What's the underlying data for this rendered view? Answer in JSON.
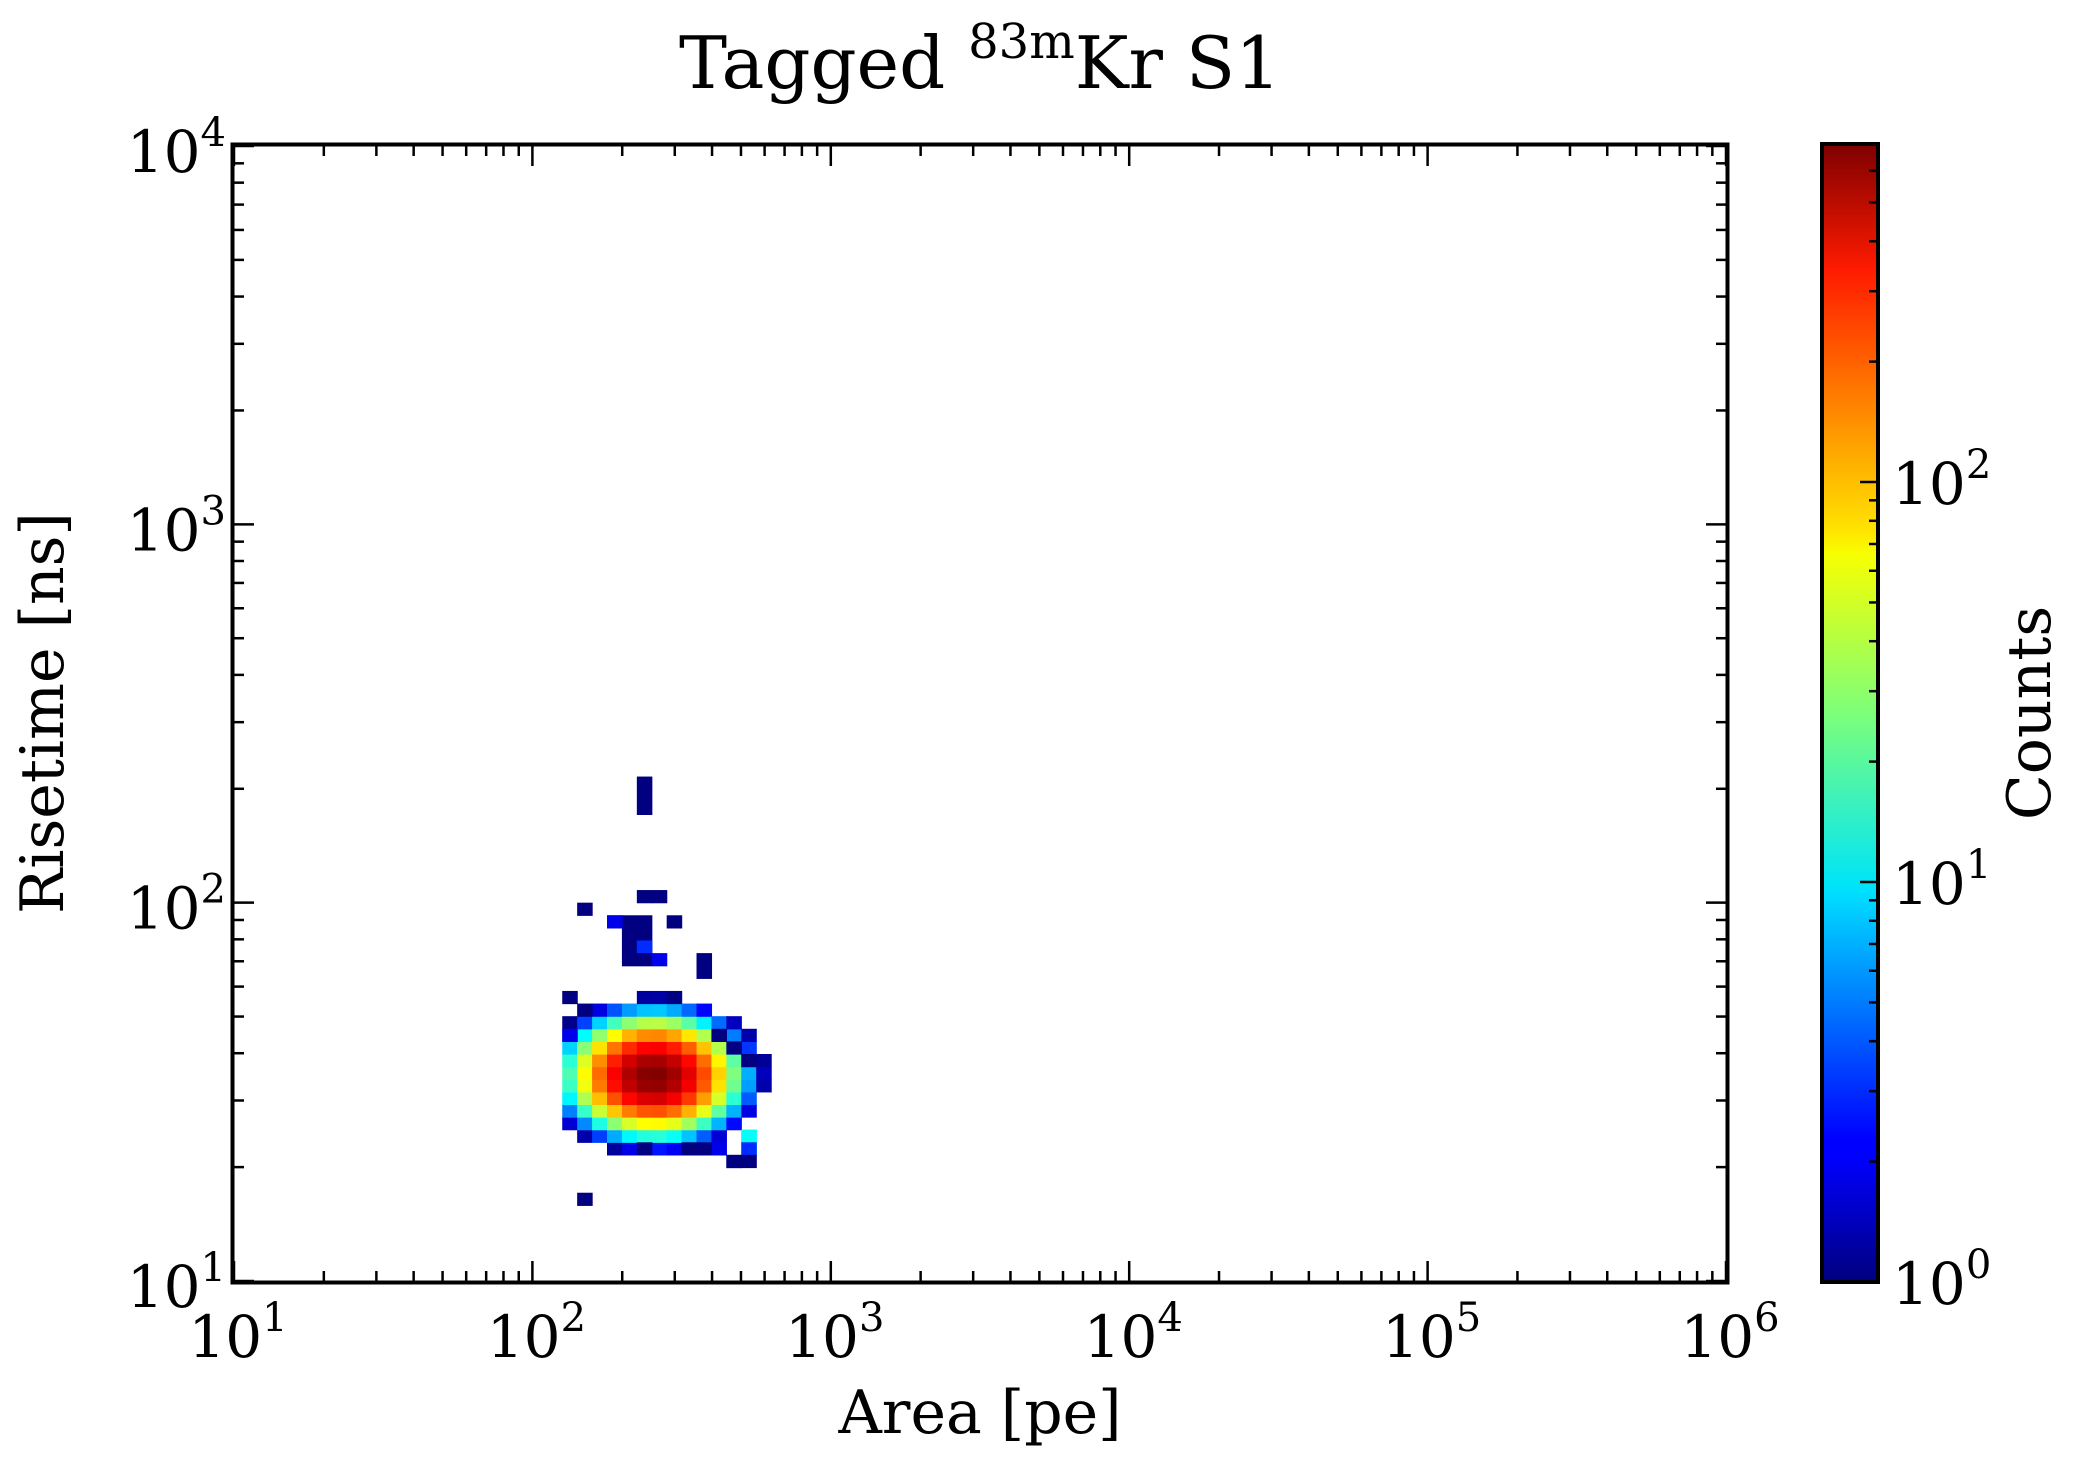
{
  "chart_data": {
    "type": "heatmap",
    "title": {
      "prefix": "Tagged ",
      "superscript": "83m",
      "suffix": "Kr S1"
    },
    "xlabel": "Area [pe]",
    "ylabel": "Risetime [ns]",
    "colorbar_label": "Counts",
    "x_scale": "log",
    "y_scale": "log",
    "color_scale": "log",
    "colormap": "jet",
    "xlim": [
      10,
      1000000
    ],
    "ylim": [
      10,
      10000
    ],
    "clim": [
      1,
      700
    ],
    "grid": false,
    "x_ticks": [
      {
        "value": 10,
        "base": "10",
        "exp": "1"
      },
      {
        "value": 100,
        "base": "10",
        "exp": "2"
      },
      {
        "value": 1000,
        "base": "10",
        "exp": "3"
      },
      {
        "value": 10000,
        "base": "10",
        "exp": "4"
      },
      {
        "value": 100000,
        "base": "10",
        "exp": "5"
      },
      {
        "value": 1000000,
        "base": "10",
        "exp": "6"
      }
    ],
    "y_ticks": [
      {
        "value": 10,
        "base": "10",
        "exp": "1"
      },
      {
        "value": 100,
        "base": "10",
        "exp": "2"
      },
      {
        "value": 1000,
        "base": "10",
        "exp": "3"
      },
      {
        "value": 10000,
        "base": "10",
        "exp": "4"
      }
    ],
    "colorbar_ticks": [
      {
        "value": 1,
        "base": "10",
        "exp": "0"
      },
      {
        "value": 10,
        "base": "10",
        "exp": "1"
      },
      {
        "value": 100,
        "base": "10",
        "exp": "2"
      }
    ],
    "bins": {
      "x_per_decade": 20,
      "y_per_decade": 30,
      "peak": {
        "area": 255,
        "risetime": 35,
        "counts": 700
      },
      "spread_log_area": 0.105,
      "spread_log_risetime": 0.058,
      "min_count": 1,
      "area_range": [
        140,
        600
      ],
      "risetime_range": [
        21,
        66
      ]
    },
    "sparse_bins": [
      {
        "area": 250,
        "risetime": 208,
        "counts": 1
      },
      {
        "area": 250,
        "risetime": 196,
        "counts": 1
      },
      {
        "area": 250,
        "risetime": 173,
        "counts": 1
      },
      {
        "area": 250,
        "risetime": 104,
        "counts": 1
      },
      {
        "area": 280,
        "risetime": 104,
        "counts": 1
      },
      {
        "area": 155,
        "risetime": 98,
        "counts": 1
      },
      {
        "area": 178,
        "risetime": 92,
        "counts": 1
      },
      {
        "area": 205,
        "risetime": 92,
        "counts": 1
      },
      {
        "area": 224,
        "risetime": 92,
        "counts": 1
      },
      {
        "area": 306,
        "risetime": 86,
        "counts": 1
      },
      {
        "area": 178,
        "risetime": 86,
        "counts": 2
      },
      {
        "area": 205,
        "risetime": 81,
        "counts": 1
      },
      {
        "area": 224,
        "risetime": 81,
        "counts": 1
      },
      {
        "area": 205,
        "risetime": 76,
        "counts": 1
      },
      {
        "area": 224,
        "risetime": 76,
        "counts": 1
      },
      {
        "area": 250,
        "risetime": 76,
        "counts": 3
      },
      {
        "area": 395,
        "risetime": 73,
        "counts": 1
      },
      {
        "area": 205,
        "risetime": 71,
        "counts": 1
      },
      {
        "area": 224,
        "risetime": 71,
        "counts": 1
      },
      {
        "area": 280,
        "risetime": 71,
        "counts": 2
      },
      {
        "area": 355,
        "risetime": 67,
        "counts": 1
      },
      {
        "area": 140,
        "risetime": 58,
        "counts": 1
      },
      {
        "area": 155,
        "risetime": 54,
        "counts": 1
      },
      {
        "area": 140,
        "risetime": 45,
        "counts": 2
      },
      {
        "area": 440,
        "risetime": 45,
        "counts": 1
      },
      {
        "area": 480,
        "risetime": 41,
        "counts": 1
      },
      {
        "area": 525,
        "risetime": 39,
        "counts": 1
      },
      {
        "area": 525,
        "risetime": 25,
        "counts": 12
      },
      {
        "area": 560,
        "risetime": 25,
        "counts": 12
      },
      {
        "area": 560,
        "risetime": 23,
        "counts": 10
      },
      {
        "area": 525,
        "risetime": 22,
        "counts": 3
      },
      {
        "area": 480,
        "risetime": 21,
        "counts": 1
      },
      {
        "area": 560,
        "risetime": 21,
        "counts": 1
      },
      {
        "area": 490,
        "risetime": 20,
        "counts": 1
      },
      {
        "area": 420,
        "risetime": 23,
        "counts": 2
      },
      {
        "area": 395,
        "risetime": 23,
        "counts": 1
      },
      {
        "area": 345,
        "risetime": 23,
        "counts": 1
      },
      {
        "area": 250,
        "risetime": 23,
        "counts": 1
      },
      {
        "area": 155,
        "risetime": 17,
        "counts": 1
      }
    ]
  }
}
